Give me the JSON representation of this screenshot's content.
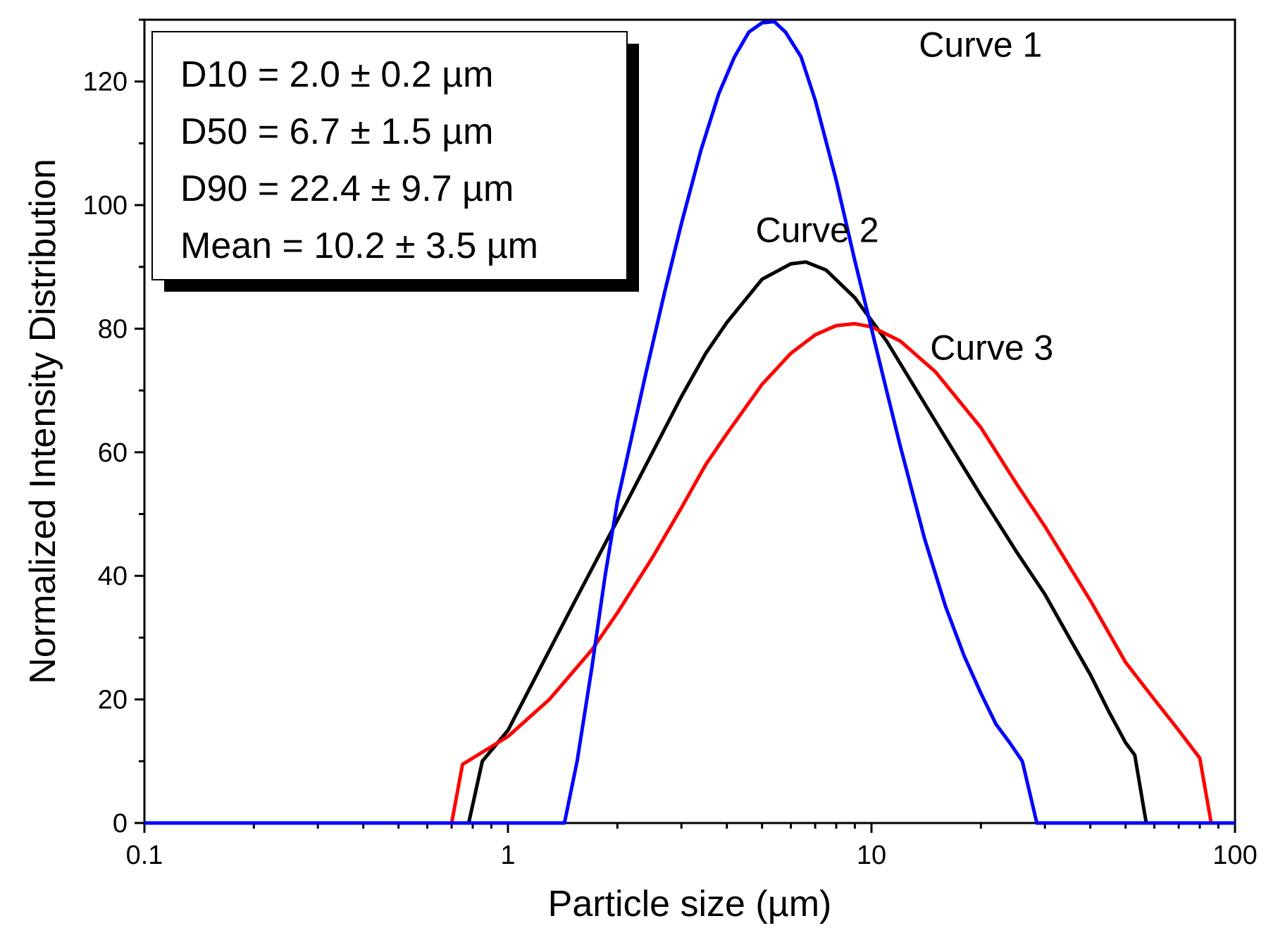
{
  "chart_data": {
    "type": "line",
    "title": "",
    "xlabel": "Particle size (µm)",
    "ylabel": "Normalized Intensity Distribution",
    "xscale": "log",
    "xlim": [
      0.1,
      100
    ],
    "ylim": [
      0,
      130
    ],
    "x_ticks": [
      0.1,
      1,
      10,
      100
    ],
    "x_tick_labels": [
      "0.1",
      "1",
      "10",
      "100"
    ],
    "y_ticks": [
      0,
      20,
      40,
      60,
      80,
      100,
      120
    ],
    "y_tick_labels": [
      "0",
      "20",
      "40",
      "60",
      "80",
      "100",
      "120"
    ],
    "grid": false,
    "legend_position": "top-left",
    "stats": [
      "D10 = 2.0 ± 0.2 µm",
      "D50 = 6.7 ± 1.5 µm",
      "D90 = 22.4 ± 9.7 µm",
      "Mean = 10.2 ± 3.5 µm"
    ],
    "series": [
      {
        "name": "Curve 1",
        "color": "#0000ff",
        "points": [
          [
            0.1,
            0
          ],
          [
            1.43,
            0
          ],
          [
            1.55,
            10
          ],
          [
            1.7,
            25
          ],
          [
            1.85,
            40
          ],
          [
            2.0,
            52
          ],
          [
            2.2,
            63
          ],
          [
            2.4,
            73
          ],
          [
            2.7,
            86
          ],
          [
            3.0,
            97
          ],
          [
            3.4,
            109
          ],
          [
            3.8,
            118
          ],
          [
            4.2,
            124
          ],
          [
            4.6,
            128
          ],
          [
            5.0,
            129.5
          ],
          [
            5.4,
            129.7
          ],
          [
            5.8,
            128
          ],
          [
            6.4,
            124
          ],
          [
            7.0,
            117
          ],
          [
            8.0,
            104
          ],
          [
            9.0,
            91
          ],
          [
            10.0,
            80
          ],
          [
            11.0,
            70
          ],
          [
            12.0,
            61
          ],
          [
            14.0,
            46
          ],
          [
            16.0,
            35
          ],
          [
            18.0,
            27
          ],
          [
            20.0,
            21
          ],
          [
            22.0,
            16
          ],
          [
            24.0,
            13
          ],
          [
            26.0,
            10
          ],
          [
            28.5,
            0
          ],
          [
            100,
            0
          ]
        ]
      },
      {
        "name": "Curve 2",
        "color": "#000000",
        "points": [
          [
            0.1,
            0
          ],
          [
            0.78,
            0
          ],
          [
            0.85,
            10
          ],
          [
            1.0,
            15
          ],
          [
            1.2,
            24
          ],
          [
            1.5,
            35
          ],
          [
            2.0,
            49
          ],
          [
            2.5,
            60
          ],
          [
            3.0,
            69
          ],
          [
            3.5,
            76
          ],
          [
            4.0,
            81
          ],
          [
            5.0,
            88
          ],
          [
            6.0,
            90.5
          ],
          [
            6.6,
            90.8
          ],
          [
            7.5,
            89.5
          ],
          [
            9.0,
            85
          ],
          [
            11.0,
            78
          ],
          [
            13.0,
            71
          ],
          [
            15.0,
            65
          ],
          [
            20.0,
            53
          ],
          [
            25.0,
            44
          ],
          [
            30.0,
            37
          ],
          [
            35.0,
            30
          ],
          [
            40.0,
            24
          ],
          [
            45.0,
            18
          ],
          [
            50.0,
            13
          ],
          [
            53.0,
            11
          ],
          [
            57.0,
            0
          ],
          [
            100,
            0
          ]
        ]
      },
      {
        "name": "Curve 3",
        "color": "#ff0000",
        "points": [
          [
            0.1,
            0
          ],
          [
            0.7,
            0
          ],
          [
            0.75,
            9.5
          ],
          [
            1.0,
            14
          ],
          [
            1.3,
            20
          ],
          [
            1.7,
            28
          ],
          [
            2.0,
            34
          ],
          [
            2.5,
            43
          ],
          [
            3.0,
            51
          ],
          [
            3.5,
            58
          ],
          [
            4.0,
            63
          ],
          [
            5.0,
            71
          ],
          [
            6.0,
            76
          ],
          [
            7.0,
            79
          ],
          [
            8.0,
            80.5
          ],
          [
            9.0,
            80.8
          ],
          [
            10.0,
            80.3
          ],
          [
            12.0,
            78
          ],
          [
            15.0,
            73
          ],
          [
            20.0,
            64
          ],
          [
            25.0,
            55
          ],
          [
            30.0,
            48
          ],
          [
            40.0,
            36
          ],
          [
            50.0,
            26
          ],
          [
            60.0,
            20
          ],
          [
            70.0,
            15
          ],
          [
            80.0,
            10.5
          ],
          [
            86.0,
            0
          ],
          [
            100,
            0
          ]
        ]
      }
    ],
    "annotations": [
      {
        "text": "Curve 1",
        "x": 13.5,
        "y": 124
      },
      {
        "text": "Curve 2",
        "x": 4.8,
        "y": 94
      },
      {
        "text": "Curve 3",
        "x": 14.5,
        "y": 75
      }
    ]
  }
}
